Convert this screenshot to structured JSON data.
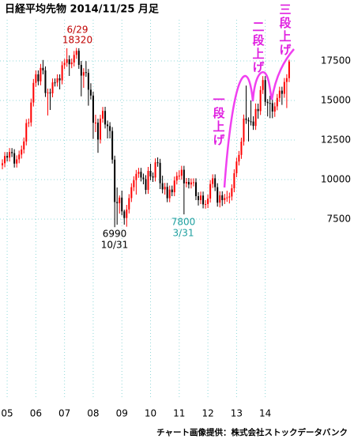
{
  "chart_data": {
    "type": "candlestick",
    "title": "日経平均先物  2014/11/25  月足",
    "source": "チャート画像提供：株式会社ストックデータバンク",
    "annotations": [
      "6/29",
      "18320",
      "6990",
      "10/31",
      "7800",
      "3/31",
      "一段上げ",
      "二段上げ",
      "三段上げ"
    ],
    "x": [
      "2004-11",
      "2004-12",
      "2005-01",
      "2005-02",
      "2005-03",
      "2005-04",
      "2005-05",
      "2005-06",
      "2005-07",
      "2005-08",
      "2005-09",
      "2005-10",
      "2005-11",
      "2005-12",
      "2006-01",
      "2006-02",
      "2006-03",
      "2006-04",
      "2006-05",
      "2006-06",
      "2006-07",
      "2006-08",
      "2006-09",
      "2006-10",
      "2006-11",
      "2006-12",
      "2007-01",
      "2007-02",
      "2007-03",
      "2007-04",
      "2007-05",
      "2007-06",
      "2007-07",
      "2007-08",
      "2007-09",
      "2007-10",
      "2007-11",
      "2007-12",
      "2008-01",
      "2008-02",
      "2008-03",
      "2008-04",
      "2008-05",
      "2008-06",
      "2008-07",
      "2008-08",
      "2008-09",
      "2008-10",
      "2008-11",
      "2008-12",
      "2009-01",
      "2009-02",
      "2009-03",
      "2009-04",
      "2009-05",
      "2009-06",
      "2009-07",
      "2009-08",
      "2009-09",
      "2009-10",
      "2009-11",
      "2009-12",
      "2010-01",
      "2010-02",
      "2010-03",
      "2010-04",
      "2010-05",
      "2010-06",
      "2010-07",
      "2010-08",
      "2010-09",
      "2010-10",
      "2010-11",
      "2010-12",
      "2011-01",
      "2011-02",
      "2011-03",
      "2011-04",
      "2011-05",
      "2011-06",
      "2011-07",
      "2011-08",
      "2011-09",
      "2011-10",
      "2011-11",
      "2011-12",
      "2012-01",
      "2012-02",
      "2012-03",
      "2012-04",
      "2012-05",
      "2012-06",
      "2012-07",
      "2012-08",
      "2012-09",
      "2012-10",
      "2012-11",
      "2012-12",
      "2013-01",
      "2013-02",
      "2013-03",
      "2013-04",
      "2013-05",
      "2013-06",
      "2013-07",
      "2013-08",
      "2013-09",
      "2013-10",
      "2013-11",
      "2013-12",
      "2014-01",
      "2014-02",
      "2014-03",
      "2014-04",
      "2014-05",
      "2014-06",
      "2014-07",
      "2014-08",
      "2014-09",
      "2014-10",
      "2014-11"
    ],
    "open": [
      10900,
      11030,
      11490,
      11390,
      11740,
      11670,
      11010,
      11280,
      11580,
      11900,
      12410,
      13570,
      13610,
      14870,
      16110,
      16650,
      16210,
      17060,
      16900,
      15470,
      15500,
      15450,
      16140,
      16130,
      16400,
      16270,
      17230,
      17380,
      17600,
      17290,
      17400,
      17880,
      18140,
      17250,
      16570,
      16790,
      16740,
      15680,
      15310,
      13590,
      13600,
      12530,
      13850,
      14340,
      13480,
      13380,
      13070,
      11260,
      8580,
      8510,
      8860,
      7990,
      7570,
      8110,
      8830,
      9520,
      9960,
      10360,
      10490,
      10130,
      10030,
      9350,
      10550,
      10200,
      10130,
      11090,
      11060,
      9770,
      9380,
      9540,
      8820,
      9370,
      9200,
      9940,
      10230,
      10240,
      10620,
      9760,
      9850,
      9690,
      9820,
      9830,
      8950,
      8700,
      8990,
      8430,
      8450,
      8800,
      9720,
      10080,
      9520,
      8540,
      9010,
      8700,
      8840,
      8870,
      8930,
      9450,
      10400,
      11140,
      11560,
      12400,
      13860,
      13770,
      13680,
      13670,
      13390,
      14460,
      14330,
      15660,
      16290,
      14910,
      14840,
      14830,
      14300,
      14630,
      15160,
      15620,
      15420,
      16170,
      16410
    ],
    "high": [
      11280,
      11740,
      11740,
      11990,
      11990,
      11920,
      11530,
      11830,
      12150,
      12660,
      13820,
      13860,
      15120,
      16360,
      16900,
      16900,
      17310,
      17560,
      17150,
      15750,
      15750,
      16390,
      16390,
      16650,
      16650,
      17480,
      17630,
      18300,
      17850,
      17650,
      18130,
      18320,
      18300,
      17500,
      17040,
      17490,
      16990,
      16090,
      15560,
      14100,
      13850,
      14100,
      14590,
      14600,
      13730,
      13630,
      13320,
      11510,
      9500,
      9000,
      9300,
      8100,
      8400,
      9080,
      9770,
      10210,
      10610,
      10740,
      10740,
      10380,
      10280,
      10800,
      11000,
      10450,
      11340,
      11400,
      11310,
      10250,
      9790,
      9790,
      9620,
      9620,
      10190,
      10480,
      10590,
      10870,
      10870,
      10100,
      10100,
      10070,
      10080,
      10080,
      9200,
      9240,
      9240,
      8700,
      9050,
      9970,
      10330,
      10330,
      9770,
      9260,
      9260,
      9090,
      9290,
      9180,
      9700,
      10650,
      11390,
      11810,
      12650,
      14110,
      15940,
      13930,
      15000,
      14000,
      14810,
      14800,
      15910,
      16540,
      16540,
      15090,
      15300,
      15080,
      14880,
      15410,
      15870,
      15870,
      16420,
      16660,
      17580
    ],
    "low": [
      10650,
      10780,
      11140,
      11140,
      11420,
      10760,
      10760,
      11030,
      11330,
      11650,
      12160,
      13320,
      13360,
      14620,
      15860,
      15960,
      15960,
      16650,
      15220,
      14050,
      14400,
      15200,
      15880,
      15880,
      15700,
      16020,
      16980,
      17130,
      16550,
      17040,
      17150,
      17630,
      17000,
      15260,
      15800,
      16490,
      14670,
      15060,
      12570,
      13000,
      11690,
      12280,
      13600,
      13230,
      12600,
      12600,
      11010,
      6990,
      7150,
      7850,
      7740,
      7150,
      7020,
      7860,
      8580,
      9270,
      9050,
      10110,
      9880,
      9700,
      9080,
      9100,
      9950,
      9850,
      9880,
      10810,
      9400,
      9130,
      9050,
      8570,
      8570,
      8950,
      8950,
      9690,
      9980,
      9990,
      7800,
      9510,
      9440,
      9440,
      9570,
      8700,
      8360,
      8450,
      8180,
      8160,
      8200,
      8550,
      9470,
      9270,
      8290,
      8240,
      8330,
      8450,
      8590,
      8490,
      8680,
      9200,
      10150,
      10890,
      11310,
      12150,
      13520,
      12410,
      13420,
      13140,
      13140,
      13850,
      14080,
      15410,
      14660,
      13990,
      13880,
      13880,
      13960,
      14380,
      14910,
      14720,
      15170,
      14520,
      16160
    ],
    "close": [
      11030,
      11490,
      11390,
      11740,
      11670,
      11010,
      11280,
      11580,
      11900,
      12410,
      13570,
      13610,
      14870,
      16110,
      16650,
      16210,
      17060,
      16900,
      15470,
      15500,
      15450,
      16140,
      16130,
      16400,
      16270,
      17230,
      17380,
      17600,
      17290,
      17400,
      17880,
      18140,
      17250,
      16570,
      16790,
      16740,
      15680,
      15310,
      13590,
      13600,
      12530,
      13850,
      14340,
      13480,
      13380,
      13070,
      11260,
      8580,
      8510,
      8860,
      7990,
      7570,
      8110,
      8830,
      9520,
      9960,
      10360,
      10490,
      10130,
      10030,
      9350,
      10550,
      10200,
      10130,
      11090,
      11060,
      9770,
      9380,
      9540,
      8820,
      9370,
      9200,
      9940,
      10230,
      10240,
      10620,
      9760,
      9850,
      9690,
      9820,
      9830,
      8950,
      8700,
      8990,
      8430,
      8450,
      8800,
      9720,
      10080,
      9520,
      8540,
      9010,
      8700,
      8840,
      8870,
      8930,
      9450,
      10400,
      11140,
      11560,
      12400,
      13860,
      13770,
      13680,
      13670,
      13390,
      14460,
      14330,
      15660,
      16290,
      14910,
      14840,
      14830,
      14300,
      14630,
      15160,
      15620,
      15420,
      16170,
      16410,
      17460
    ],
    "up_color": "#ff0000",
    "down_color": "#000000",
    "xlim": [
      "2004-10",
      "2015-02"
    ],
    "xticks": [
      {
        "value": "2005-01",
        "label": "05"
      },
      {
        "value": "2006-01",
        "label": "06"
      },
      {
        "value": "2007-01",
        "label": "07"
      },
      {
        "value": "2008-01",
        "label": "08"
      },
      {
        "value": "2009-01",
        "label": "09"
      },
      {
        "value": "2010-01",
        "label": "10"
      },
      {
        "value": "2011-01",
        "label": "11"
      },
      {
        "value": "2012-01",
        "label": "12"
      },
      {
        "value": "2013-01",
        "label": "13"
      },
      {
        "value": "2014-01",
        "label": "14"
      }
    ],
    "ylim": [
      -3900,
      20100
    ],
    "yticks": [
      7500,
      10000,
      12500,
      15000,
      17500
    ],
    "grid": true
  }
}
